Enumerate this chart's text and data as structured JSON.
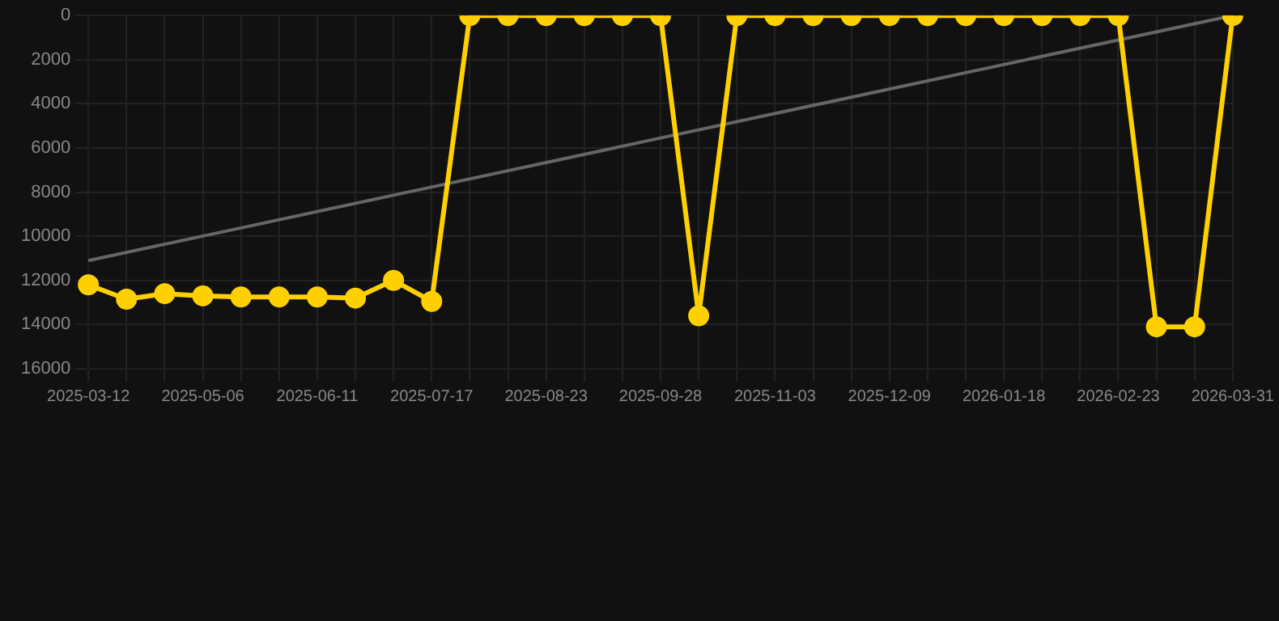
{
  "chart_data": {
    "type": "line",
    "categories": [
      "2025-03-12",
      null,
      null,
      "2025-05-06",
      null,
      null,
      "2025-06-11",
      null,
      null,
      "2025-07-17",
      null,
      null,
      "2025-08-23",
      null,
      null,
      "2025-09-28",
      null,
      null,
      "2025-11-03",
      null,
      null,
      "2025-12-09",
      null,
      null,
      "2026-01-18",
      null,
      null,
      "2026-02-23",
      null,
      null,
      "2026-03-31"
    ],
    "series": [
      {
        "color": "#ffd000",
        "marker": "circle",
        "values": [
          12200,
          12850,
          12600,
          12700,
          12750,
          12750,
          12750,
          12800,
          12000,
          12950,
          0,
          0,
          0,
          0,
          0,
          0,
          13600,
          0,
          0,
          0,
          0,
          0,
          0,
          0,
          0,
          0,
          0,
          0,
          14100,
          14100,
          0
        ]
      },
      {
        "color": "#666666",
        "marker": "none",
        "values": [
          11100,
          null,
          null,
          null,
          null,
          null,
          null,
          null,
          null,
          null,
          null,
          null,
          null,
          null,
          null,
          null,
          null,
          null,
          null,
          null,
          null,
          null,
          null,
          null,
          null,
          null,
          null,
          null,
          null,
          null,
          0
        ]
      }
    ],
    "ylim": [
      16000,
      0
    ],
    "yticks": [
      0,
      2000,
      4000,
      6000,
      8000,
      10000,
      12000,
      14000,
      16000
    ],
    "grid": true,
    "legend": false
  }
}
